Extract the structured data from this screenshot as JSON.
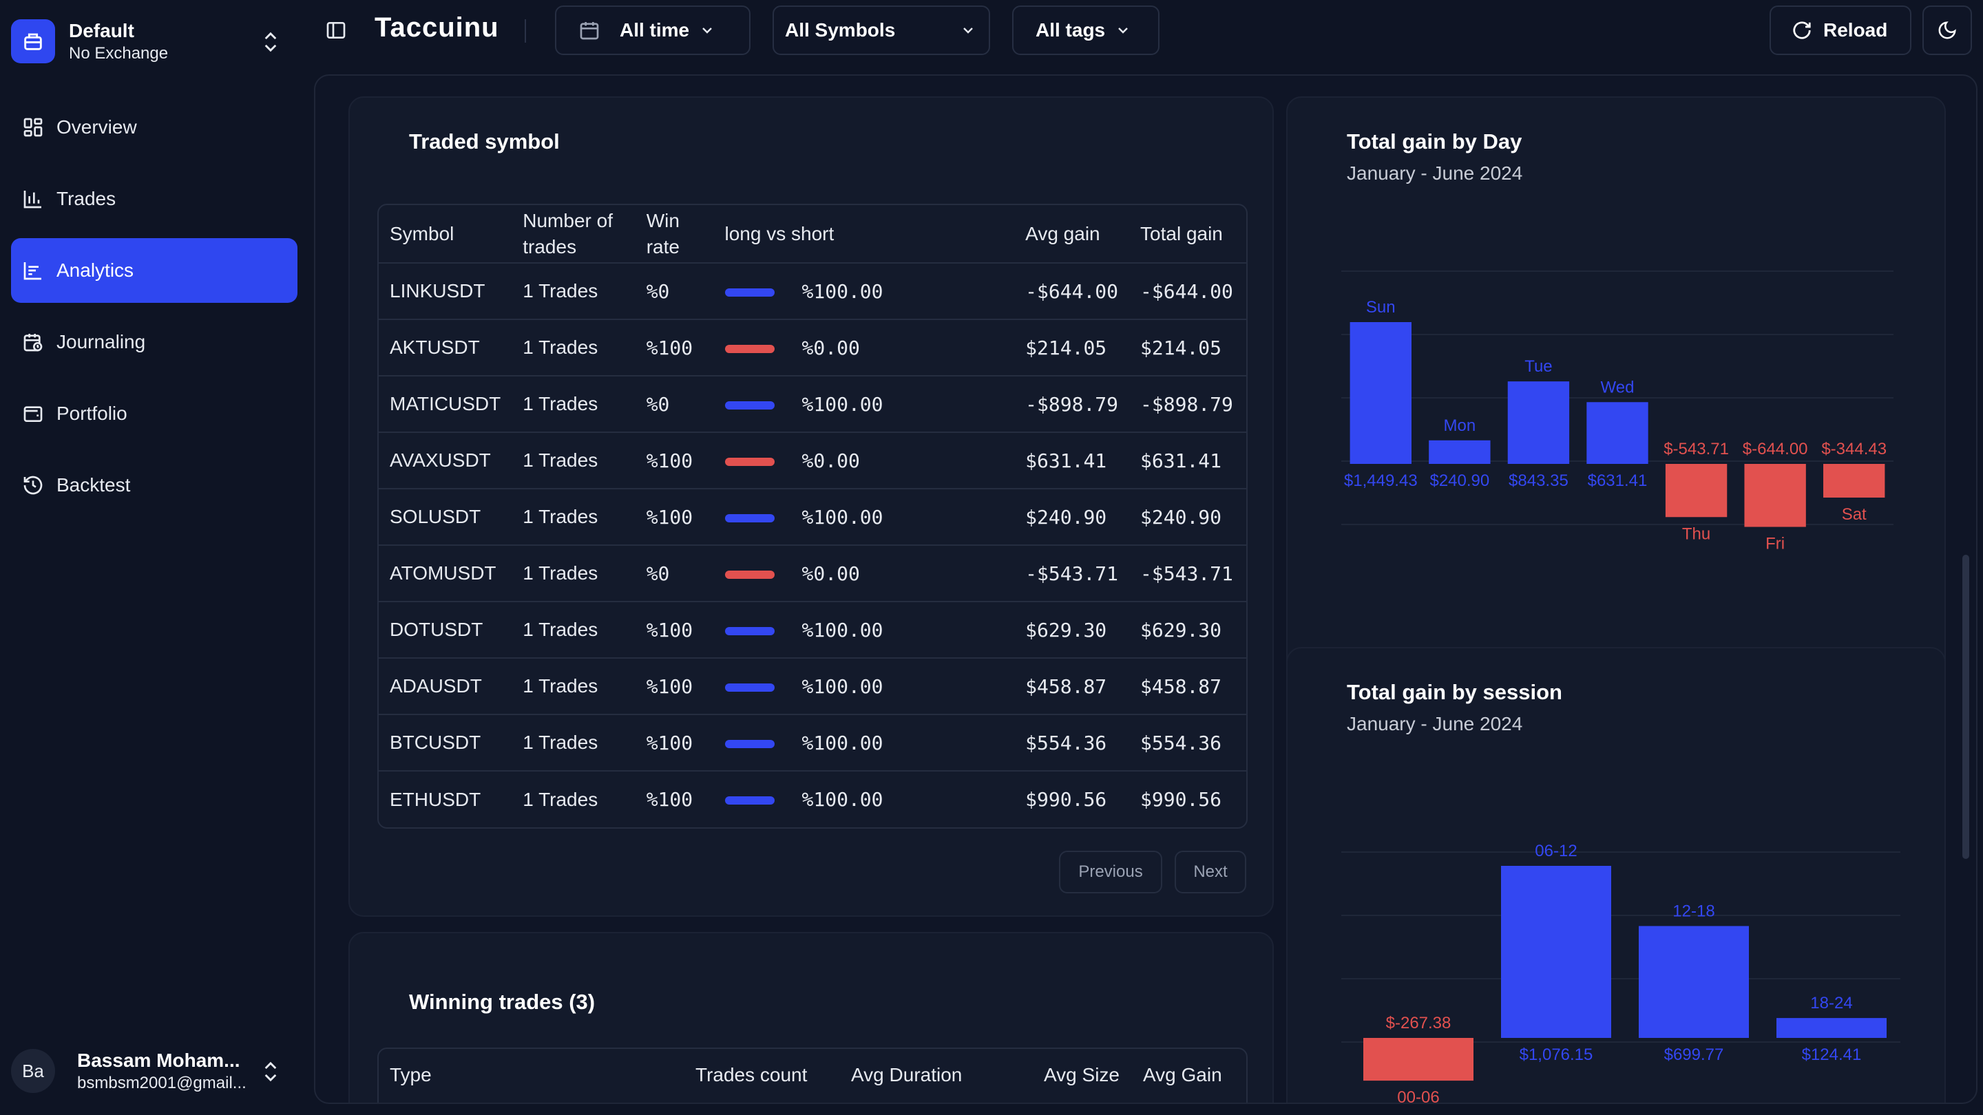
{
  "workspace": {
    "name": "Default",
    "exchange": "No Exchange"
  },
  "nav": [
    {
      "label": "Overview",
      "icon": "grid-icon",
      "active": false
    },
    {
      "label": "Trades",
      "icon": "chart-bars-icon",
      "active": false
    },
    {
      "label": "Analytics",
      "icon": "analytics-icon",
      "active": true
    },
    {
      "label": "Journaling",
      "icon": "calendar-clock-icon",
      "active": false
    },
    {
      "label": "Portfolio",
      "icon": "wallet-icon",
      "active": false
    },
    {
      "label": "Backtest",
      "icon": "history-icon",
      "active": false
    }
  ],
  "user": {
    "initials": "Ba",
    "name": "Bassam Moham...",
    "email": "bsmbsm2001@gmail..."
  },
  "topbar": {
    "brand": "Taccuinu",
    "time_filter": "All time",
    "symbol_filter": "All Symbols",
    "tag_filter": "All tags",
    "reload_label": "Reload"
  },
  "traded_symbol": {
    "title": "Traded symbol",
    "headers": {
      "symbol": "Symbol",
      "trades": "Number of trades",
      "win_rate": "Win rate",
      "long_short": "long vs short",
      "avg_gain": "Avg gain",
      "total_gain": "Total gain"
    },
    "rows": [
      {
        "symbol": "LINKUSDT",
        "trades": "1 Trades",
        "win_rate": "%0",
        "side": "long",
        "ls_pct": "%100.00",
        "avg_gain": "-$644.00",
        "total_gain": "-$644.00",
        "positive": false
      },
      {
        "symbol": "AKTUSDT",
        "trades": "1 Trades",
        "win_rate": "%100",
        "side": "short",
        "ls_pct": "%0.00",
        "avg_gain": "$214.05",
        "total_gain": "$214.05",
        "positive": true
      },
      {
        "symbol": "MATICUSDT",
        "trades": "1 Trades",
        "win_rate": "%0",
        "side": "long",
        "ls_pct": "%100.00",
        "avg_gain": "-$898.79",
        "total_gain": "-$898.79",
        "positive": false
      },
      {
        "symbol": "AVAXUSDT",
        "trades": "1 Trades",
        "win_rate": "%100",
        "side": "short",
        "ls_pct": "%0.00",
        "avg_gain": "$631.41",
        "total_gain": "$631.41",
        "positive": true
      },
      {
        "symbol": "SOLUSDT",
        "trades": "1 Trades",
        "win_rate": "%100",
        "side": "long",
        "ls_pct": "%100.00",
        "avg_gain": "$240.90",
        "total_gain": "$240.90",
        "positive": true
      },
      {
        "symbol": "ATOMUSDT",
        "trades": "1 Trades",
        "win_rate": "%0",
        "side": "short",
        "ls_pct": "%0.00",
        "avg_gain": "-$543.71",
        "total_gain": "-$543.71",
        "positive": false
      },
      {
        "symbol": "DOTUSDT",
        "trades": "1 Trades",
        "win_rate": "%100",
        "side": "long",
        "ls_pct": "%100.00",
        "avg_gain": "$629.30",
        "total_gain": "$629.30",
        "positive": true
      },
      {
        "symbol": "ADAUSDT",
        "trades": "1 Trades",
        "win_rate": "%100",
        "side": "long",
        "ls_pct": "%100.00",
        "avg_gain": "$458.87",
        "total_gain": "$458.87",
        "positive": true
      },
      {
        "symbol": "BTCUSDT",
        "trades": "1 Trades",
        "win_rate": "%100",
        "side": "long",
        "ls_pct": "%100.00",
        "avg_gain": "$554.36",
        "total_gain": "$554.36",
        "positive": true
      },
      {
        "symbol": "ETHUSDT",
        "trades": "1 Trades",
        "win_rate": "%100",
        "side": "long",
        "ls_pct": "%100.00",
        "avg_gain": "$990.56",
        "total_gain": "$990.56",
        "positive": true
      }
    ],
    "prev_label": "Previous",
    "next_label": "Next"
  },
  "winning_trades": {
    "title": "Winning trades (3)",
    "headers": {
      "type": "Type",
      "count": "Trades count",
      "duration": "Avg Duration",
      "size": "Avg Size",
      "gain": "Avg Gain"
    }
  },
  "colors": {
    "positive": "#3347f2",
    "negative": "#e2514f",
    "gain_text": "#4cc46a",
    "accent": "#2f47f0"
  },
  "chart_data": [
    {
      "type": "bar",
      "title": "Total gain by Day",
      "subtitle": "January - June 2024",
      "categories": [
        "Sun",
        "Mon",
        "Tue",
        "Wed",
        "Thu",
        "Fri",
        "Sat"
      ],
      "values": [
        1449.43,
        240.9,
        843.35,
        631.41,
        -543.71,
        -644.0,
        -344.43
      ],
      "value_labels": [
        "$1,449.43",
        "$240.90",
        "$843.35",
        "$631.41",
        "$-543.71",
        "$-644.00",
        "$-344.43"
      ]
    },
    {
      "type": "bar",
      "title": "Total gain by session",
      "subtitle": "January - June 2024",
      "categories": [
        "00-06",
        "06-12",
        "12-18",
        "18-24"
      ],
      "values": [
        -267.38,
        1076.15,
        699.77,
        124.41
      ],
      "value_labels": [
        "$-267.38",
        "$1,076.15",
        "$699.77",
        "$124.41"
      ]
    }
  ]
}
